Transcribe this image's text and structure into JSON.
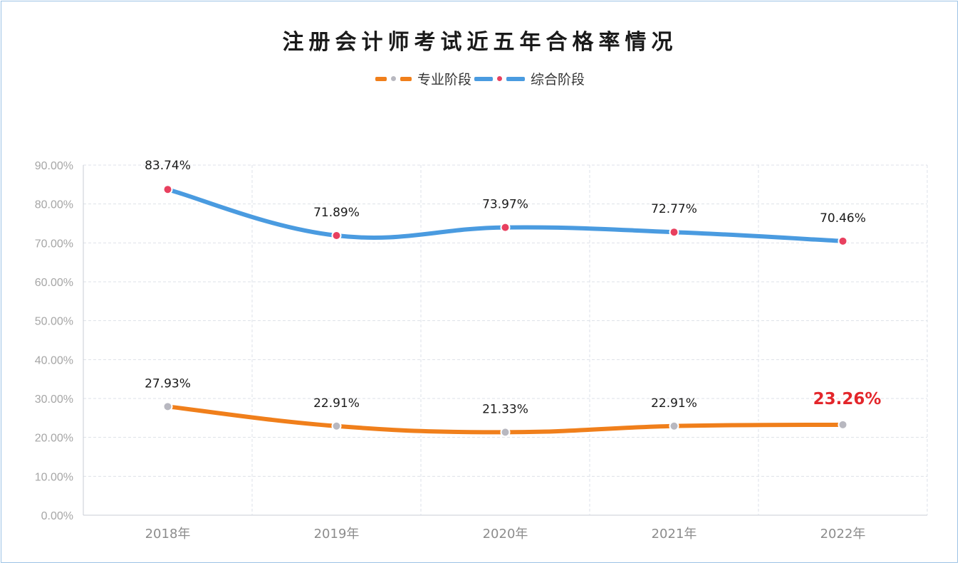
{
  "chart_data": {
    "type": "line",
    "title": "注册会计师考试近五年合格率情况",
    "categories": [
      "2018年",
      "2019年",
      "2020年",
      "2021年",
      "2022年"
    ],
    "series": [
      {
        "name": "专业阶段",
        "values": [
          27.93,
          22.91,
          21.33,
          22.91,
          23.26
        ],
        "labels": [
          "27.93%",
          "22.91%",
          "21.33%",
          "22.91%",
          "23.26%"
        ],
        "color": "#f07f1b",
        "marker_color": "#b8b8c0",
        "highlight_last": {
          "color": "#e3262b"
        }
      },
      {
        "name": "综合阶段",
        "values": [
          83.74,
          71.89,
          73.97,
          72.77,
          70.46
        ],
        "labels": [
          "83.74%",
          "71.89%",
          "73.97%",
          "72.77%",
          "70.46%"
        ],
        "color": "#4a9be0",
        "marker_color": "#e8405f"
      }
    ],
    "ylim": [
      0,
      90
    ],
    "yticks": [
      "0.00%",
      "10.00%",
      "20.00%",
      "30.00%",
      "40.00%",
      "50.00%",
      "60.00%",
      "70.00%",
      "80.00%",
      "90.00%"
    ],
    "grid": true,
    "smooth": true,
    "legend": "top-center"
  }
}
